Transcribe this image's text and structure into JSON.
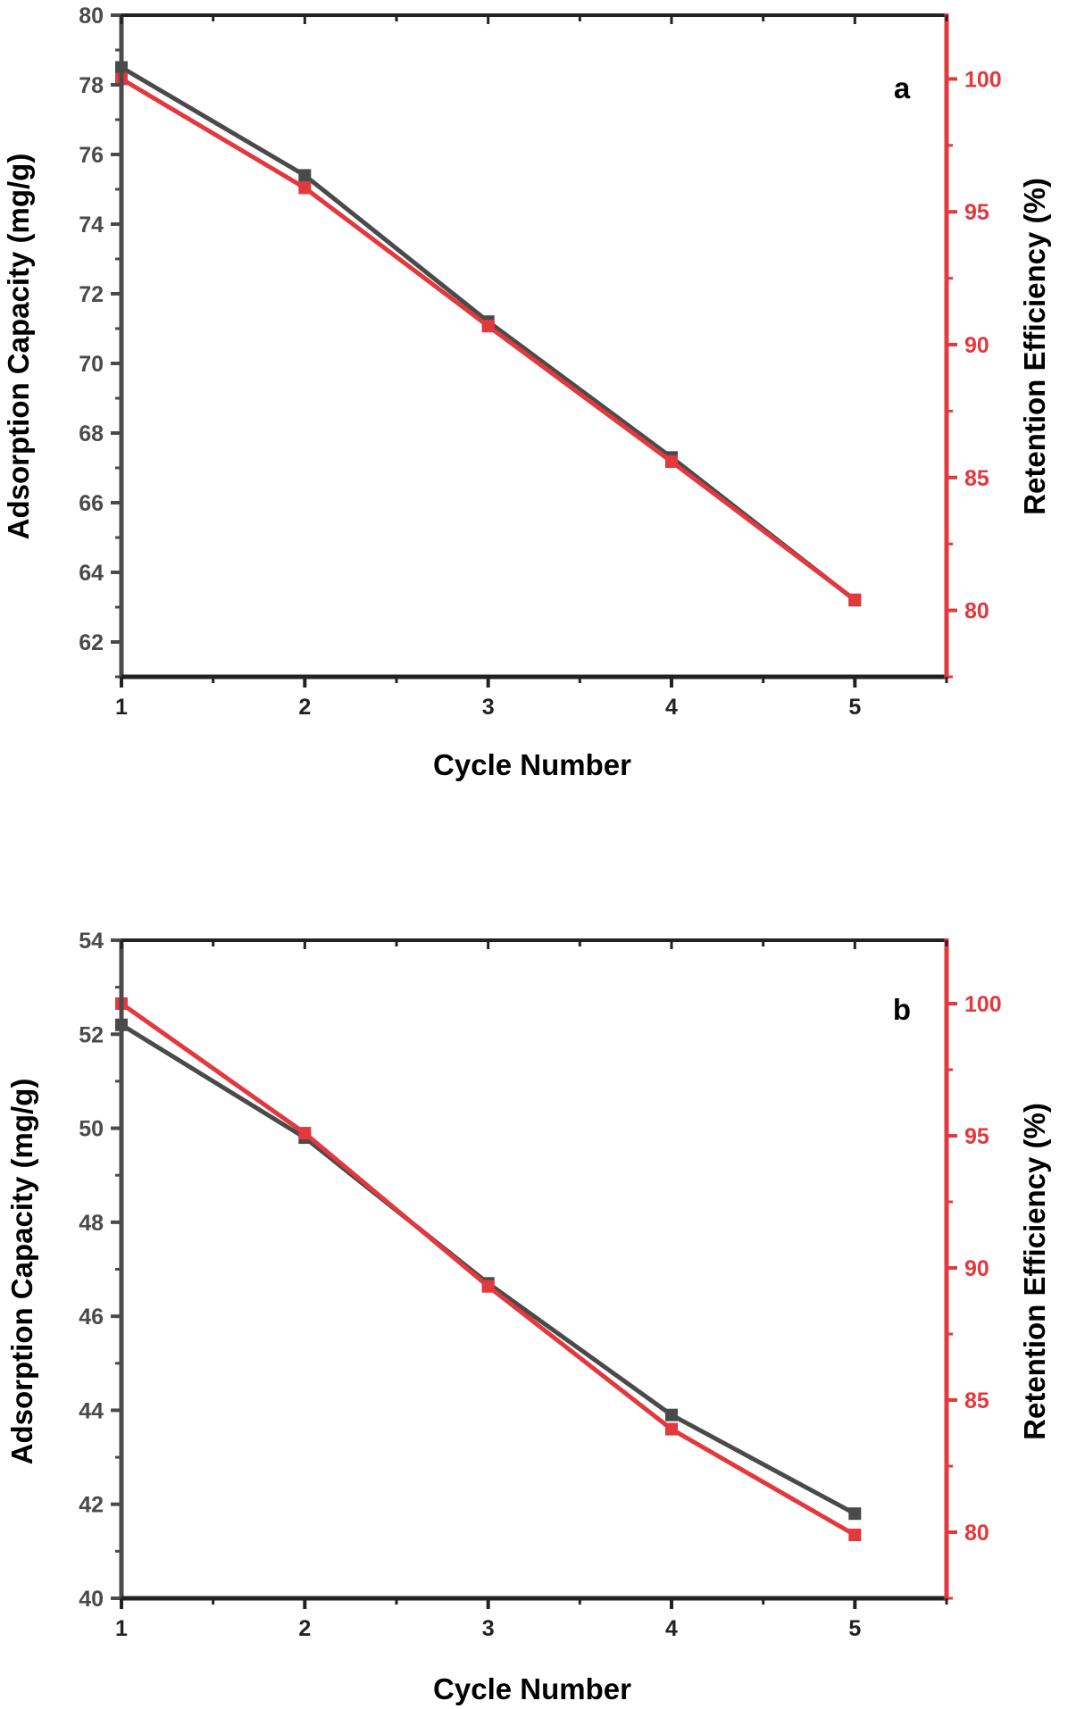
{
  "colors": {
    "left_axis": "#4a4a4a",
    "right_axis": "#e2383e",
    "capacity_series": "#4a4a4a",
    "retention_series": "#e2383e"
  },
  "chart_data": [
    {
      "type": "line",
      "panel_label": "a",
      "xlabel": "Cycle Number",
      "ylabel": "Adsorption Capacity (mg/g)",
      "y2label": "Retention Efficiency (%)",
      "x": [
        1,
        2,
        3,
        4,
        5
      ],
      "x_ticks": [
        "1",
        "2",
        "3",
        "4",
        "5"
      ],
      "xlim": [
        1,
        5.5
      ],
      "ylim": [
        61,
        80
      ],
      "y_ticks": [
        "62",
        "64",
        "66",
        "68",
        "70",
        "72",
        "74",
        "76",
        "78",
        "80"
      ],
      "y2lim": [
        77.5,
        102.4
      ],
      "y2_ticks": [
        "80",
        "85",
        "90",
        "95",
        "100"
      ],
      "series": [
        {
          "axis": "left",
          "color": "#4a4a4a",
          "values": [
            78.5,
            75.4,
            71.2,
            67.3,
            63.2
          ]
        },
        {
          "axis": "right",
          "color": "#e2383e",
          "values": [
            100,
            95.9,
            90.7,
            85.6,
            80.4
          ]
        }
      ],
      "grid": false
    },
    {
      "type": "line",
      "panel_label": "b",
      "xlabel": "Cycle Number",
      "ylabel": "Adsorption Capacity (mg/g)",
      "y2label": "Retention Efficiency (%)",
      "x": [
        1,
        2,
        3,
        4,
        5
      ],
      "x_ticks": [
        "1",
        "2",
        "3",
        "4",
        "5"
      ],
      "xlim": [
        1,
        5.5
      ],
      "ylim": [
        40,
        54
      ],
      "y_ticks": [
        "40",
        "42",
        "44",
        "46",
        "48",
        "50",
        "52",
        "54"
      ],
      "y2lim": [
        77.5,
        102.4
      ],
      "y2_ticks": [
        "80",
        "85",
        "90",
        "95",
        "100"
      ],
      "series": [
        {
          "axis": "left",
          "color": "#4a4a4a",
          "values": [
            52.2,
            49.8,
            46.7,
            43.9,
            41.8
          ]
        },
        {
          "axis": "right",
          "color": "#e2383e",
          "values": [
            100,
            95.1,
            89.3,
            83.9,
            79.9
          ]
        }
      ],
      "grid": false
    }
  ]
}
